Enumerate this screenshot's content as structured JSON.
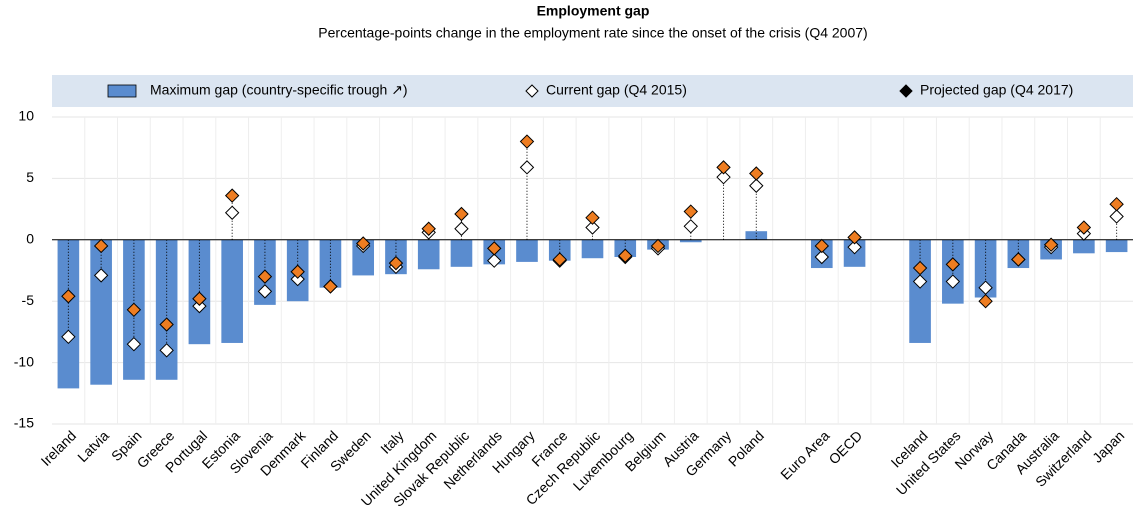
{
  "chart_data": {
    "type": "bar",
    "title": "Employment gap",
    "subtitle": "Percentage-points change in the employment rate since the onset of the crisis (Q4 2007)",
    "categories": [
      "Ireland",
      "Latvia",
      "Spain",
      "Greece",
      "Portugal",
      "Estonia",
      "Slovenia",
      "Denmark",
      "Finland",
      "Sweden",
      "Italy",
      "United Kingdom",
      "Slovak Republic",
      "Netherlands",
      "Hungary",
      "France",
      "Czech Republic",
      "Luxembourg",
      "Belgium",
      "Austria",
      "Germany",
      "Poland",
      null,
      "Euro Area",
      "OECD",
      null,
      "Iceland",
      "United States",
      "Norway",
      "Canada",
      "Australia",
      "Switzerland",
      "Japan"
    ],
    "series": [
      {
        "name": "Maximum gap (country-specific trough ↗)",
        "color": "#5a8ccf",
        "kind": "bar",
        "values": [
          -12.1,
          -11.8,
          -11.4,
          -11.4,
          -8.5,
          -8.4,
          -5.3,
          -5.0,
          -3.9,
          -2.9,
          -2.8,
          -2.4,
          -2.2,
          -2.0,
          -1.8,
          -1.7,
          -1.5,
          -1.4,
          -0.8,
          -0.2,
          0,
          0.7,
          null,
          -2.3,
          -2.2,
          null,
          -8.4,
          -5.2,
          -4.7,
          -2.3,
          -1.6,
          -1.1,
          -1.0
        ]
      },
      {
        "name": "Current gap (Q4 2015)",
        "color": "#ffffff",
        "kind": "diamond",
        "values": [
          -7.9,
          -2.9,
          -8.5,
          -9.0,
          -5.4,
          2.2,
          -4.2,
          -3.2,
          -3.8,
          -0.5,
          -2.2,
          0.6,
          0.9,
          -1.7,
          5.9,
          -1.7,
          1.0,
          -1.4,
          -0.7,
          1.1,
          5.1,
          4.4,
          null,
          -1.4,
          -0.6,
          null,
          -3.4,
          -3.4,
          -3.9,
          -1.6,
          -0.6,
          0.5,
          1.9
        ]
      },
      {
        "name": "Projected gap (Q4 2017)",
        "color": "#ee7d21",
        "legend_color": "#000000",
        "kind": "diamond",
        "values": [
          -4.6,
          -0.5,
          -5.7,
          -6.9,
          -4.8,
          3.6,
          -3.0,
          -2.6,
          -3.8,
          -0.3,
          -1.9,
          0.9,
          2.1,
          -0.7,
          8.0,
          -1.6,
          1.8,
          -1.3,
          -0.5,
          2.3,
          5.9,
          5.4,
          null,
          -0.5,
          0.2,
          null,
          -2.3,
          -2.0,
          -5.0,
          -1.6,
          -0.4,
          1.0,
          2.9
        ]
      }
    ],
    "ylim": [
      -15,
      10
    ],
    "yticks": [
      -15,
      -10,
      -5,
      0,
      5,
      10
    ],
    "grid": true
  }
}
